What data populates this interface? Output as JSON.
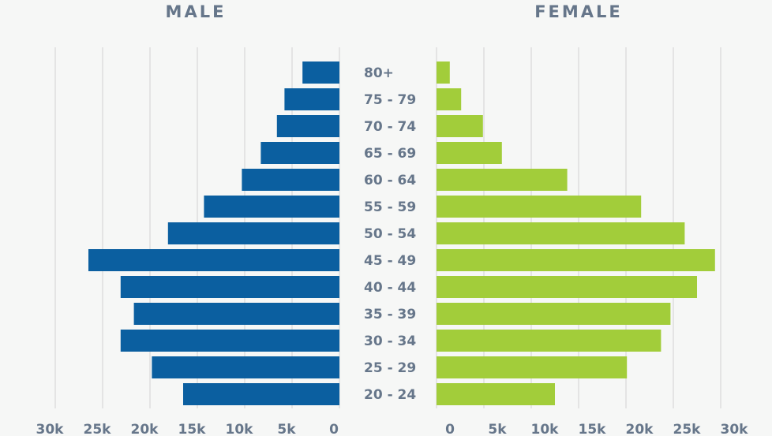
{
  "chart_data": {
    "type": "bar",
    "orientation": "horizontal-butterfly",
    "left_title": "MALE",
    "right_title": "FEMALE",
    "categories": [
      "80+",
      "75 - 79",
      "70 - 74",
      "65 - 69",
      "60 - 64",
      "55 - 59",
      "50 - 54",
      "45 - 49",
      "40 - 44",
      "35 - 39",
      "30 - 34",
      "25 - 29",
      "20 - 24"
    ],
    "series": [
      {
        "name": "MALE",
        "color": "#0b5fa0",
        "values": [
          3900,
          5800,
          6600,
          8300,
          10300,
          14300,
          18100,
          26500,
          23100,
          21700,
          23100,
          19800,
          16500
        ]
      },
      {
        "name": "FEMALE",
        "color": "#a2cd3a",
        "values": [
          1400,
          2600,
          4900,
          6900,
          13800,
          21600,
          26200,
          29400,
          27500,
          24700,
          23700,
          20100,
          12500
        ]
      }
    ],
    "left_ticks": [
      "30k",
      "25k",
      "20k",
      "15k",
      "10k",
      "5k",
      "0"
    ],
    "right_ticks": [
      "0",
      "5k",
      "10k",
      "15k",
      "20k",
      "25k",
      "30k"
    ],
    "xlim": [
      0,
      30000
    ],
    "grid": true,
    "colors": {
      "grid": "#dddddd",
      "text": "#66768a",
      "background": "#f6f7f6"
    }
  }
}
